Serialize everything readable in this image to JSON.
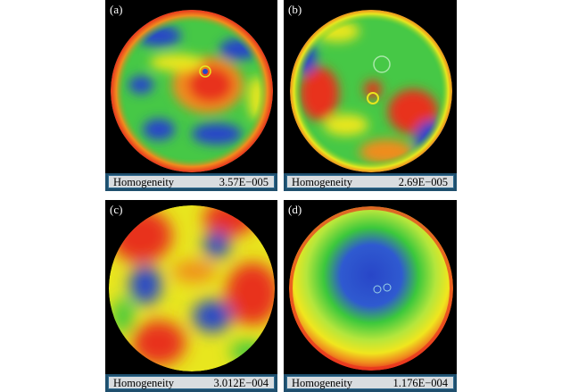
{
  "panels": [
    {
      "label": "(a)",
      "caption": "Homogeneity",
      "value": "3.57E−005"
    },
    {
      "label": "(b)",
      "caption": "Homogeneity",
      "value": "2.69E−005"
    },
    {
      "label": "(c)",
      "caption": "Homogeneity",
      "value": "3.012E−004"
    },
    {
      "label": "(d)",
      "caption": "Homogeneity",
      "value": "1.176E−004"
    }
  ],
  "colors": {
    "background": "#000000",
    "red": "#e8321e",
    "orange": "#f08c1e",
    "yellow": "#e8e61e",
    "green": "#3cc83c",
    "blue": "#2846c8",
    "caption_bar": "#1f4f6d",
    "caption_fill": "#d9dde0"
  }
}
